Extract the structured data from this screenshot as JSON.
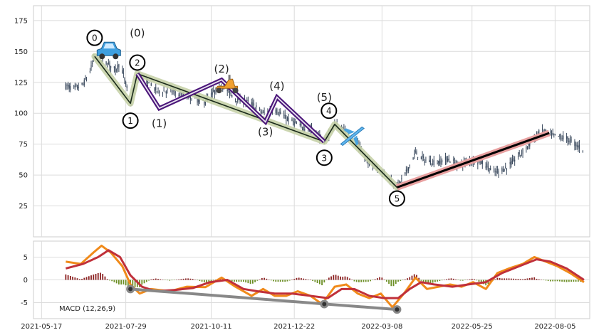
{
  "chart_data": {
    "type": "candlestick",
    "price_panel": {
      "ylim": [
        0,
        187
      ],
      "y_ticks": [
        25,
        50,
        75,
        100,
        125,
        150,
        175
      ],
      "x_range": [
        "2021-05-10",
        "2022-09-04"
      ],
      "grid": true,
      "price_path": [
        [
          "2021-06-07",
          122
        ],
        [
          "2021-06-15",
          120
        ],
        [
          "2021-06-22",
          123
        ],
        [
          "2021-06-28",
          134
        ],
        [
          "2021-07-02",
          146
        ],
        [
          "2021-07-08",
          142
        ],
        [
          "2021-07-14",
          140
        ],
        [
          "2021-07-20",
          135
        ],
        [
          "2021-07-24",
          141
        ],
        [
          "2021-07-30",
          120
        ],
        [
          "2021-08-02",
          108
        ],
        [
          "2021-08-04",
          115
        ],
        [
          "2021-08-08",
          132
        ],
        [
          "2021-08-16",
          125
        ],
        [
          "2021-08-25",
          118
        ],
        [
          "2021-09-05",
          118
        ],
        [
          "2021-09-20",
          114
        ],
        [
          "2021-10-05",
          109
        ],
        [
          "2021-10-20",
          123
        ],
        [
          "2021-11-01",
          112
        ],
        [
          "2021-11-15",
          108
        ],
        [
          "2021-11-25",
          100
        ],
        [
          "2021-12-05",
          103
        ],
        [
          "2021-12-15",
          96
        ],
        [
          "2021-12-28",
          89
        ],
        [
          "2022-01-08",
          86
        ],
        [
          "2022-01-17",
          77
        ],
        [
          "2022-01-26",
          91
        ],
        [
          "2022-02-03",
          86
        ],
        [
          "2022-02-12",
          80
        ],
        [
          "2022-02-22",
          62
        ],
        [
          "2022-03-05",
          56
        ],
        [
          "2022-03-13",
          49
        ],
        [
          "2022-03-21",
          40
        ],
        [
          "2022-03-29",
          52
        ],
        [
          "2022-04-06",
          68
        ],
        [
          "2022-04-14",
          62
        ],
        [
          "2022-04-24",
          60
        ],
        [
          "2022-05-04",
          63
        ],
        [
          "2022-05-14",
          58
        ],
        [
          "2022-05-24",
          62
        ],
        [
          "2022-06-04",
          60
        ],
        [
          "2022-06-13",
          52
        ],
        [
          "2022-06-24",
          56
        ],
        [
          "2022-07-04",
          65
        ],
        [
          "2022-07-14",
          75
        ],
        [
          "2022-07-24",
          86
        ],
        [
          "2022-08-03",
          82
        ],
        [
          "2022-08-14",
          80
        ],
        [
          "2022-08-24",
          74
        ],
        [
          "2022-08-29",
          71
        ]
      ],
      "main_wave_path": [
        [
          "2021-07-02",
          146
        ],
        [
          "2021-08-02",
          108
        ],
        [
          "2021-08-08",
          132
        ],
        [
          "2022-01-17",
          77
        ],
        [
          "2022-01-26",
          91
        ],
        [
          "2022-03-21",
          40
        ]
      ],
      "sub_wave_path": [
        [
          "2021-08-08",
          132
        ],
        [
          "2021-08-27",
          104
        ],
        [
          "2021-10-20",
          127
        ],
        [
          "2021-11-27",
          93
        ],
        [
          "2021-12-07",
          113
        ],
        [
          "2022-01-17",
          77
        ]
      ],
      "trend_line": [
        [
          "2022-03-21",
          40
        ],
        [
          "2022-07-31",
          84
        ]
      ],
      "wave_circles": [
        {
          "label": "0",
          "date": "2021-07-02",
          "y": 161
        },
        {
          "label": "1",
          "date": "2021-08-02",
          "y": 94
        },
        {
          "label": "2",
          "date": "2021-08-08",
          "y": 141
        },
        {
          "label": "3",
          "date": "2022-01-17",
          "y": 64
        },
        {
          "label": "4",
          "date": "2022-01-21",
          "y": 102
        },
        {
          "label": "5",
          "date": "2022-03-21",
          "y": 31
        }
      ],
      "subwave_labels": [
        {
          "label": "(0)",
          "date": "2021-08-08",
          "y": 162
        },
        {
          "label": "(1)",
          "date": "2021-08-27",
          "y": 89
        },
        {
          "label": "(2)",
          "date": "2021-10-20",
          "y": 133
        },
        {
          "label": "(3)",
          "date": "2021-11-27",
          "y": 82
        },
        {
          "label": "(4)",
          "date": "2021-12-07",
          "y": 119
        },
        {
          "label": "(5)",
          "date": "2022-01-17",
          "y": 110
        }
      ],
      "icons": [
        {
          "name": "car-icon",
          "date": "2021-07-14",
          "y": 150
        },
        {
          "name": "scooter-icon",
          "date": "2021-10-24",
          "y": 123
        },
        {
          "name": "airplane-icon",
          "date": "2022-02-10",
          "y": 82
        }
      ]
    },
    "macd_panel": {
      "label": "MACD (12,26,9)",
      "ylim": [
        -8.5,
        8.5
      ],
      "y_ticks": [
        -5,
        0,
        5
      ],
      "grid": true,
      "macd_path": [
        [
          "2021-06-07",
          4
        ],
        [
          "2021-06-20",
          3.5
        ],
        [
          "2021-07-01",
          6
        ],
        [
          "2021-07-08",
          7.5
        ],
        [
          "2021-07-16",
          6
        ],
        [
          "2021-07-26",
          3
        ],
        [
          "2021-08-02",
          -1
        ],
        [
          "2021-08-10",
          -3
        ],
        [
          "2021-08-20",
          -2
        ],
        [
          "2021-09-05",
          -2.5
        ],
        [
          "2021-09-20",
          -1.5
        ],
        [
          "2021-10-06",
          -1.6
        ],
        [
          "2021-10-20",
          0.5
        ],
        [
          "2021-11-01",
          -1.5
        ],
        [
          "2021-11-15",
          -3.5
        ],
        [
          "2021-11-25",
          -2
        ],
        [
          "2021-12-05",
          -3.5
        ],
        [
          "2021-12-15",
          -3.5
        ],
        [
          "2021-12-25",
          -2.5
        ],
        [
          "2022-01-05",
          -3.5
        ],
        [
          "2022-01-15",
          -5.3
        ],
        [
          "2022-01-26",
          -1.5
        ],
        [
          "2022-02-05",
          -1
        ],
        [
          "2022-02-15",
          -3
        ],
        [
          "2022-02-25",
          -4
        ],
        [
          "2022-03-07",
          -3
        ],
        [
          "2022-03-17",
          -6
        ],
        [
          "2022-03-27",
          -3
        ],
        [
          "2022-04-06",
          0.5
        ],
        [
          "2022-04-16",
          -2
        ],
        [
          "2022-04-26",
          -1.5
        ],
        [
          "2022-05-06",
          -1
        ],
        [
          "2022-05-16",
          -1.5
        ],
        [
          "2022-05-26",
          -0.5
        ],
        [
          "2022-06-06",
          -2
        ],
        [
          "2022-06-16",
          1.5
        ],
        [
          "2022-06-26",
          2.5
        ],
        [
          "2022-07-08",
          3.5
        ],
        [
          "2022-07-18",
          5
        ],
        [
          "2022-07-28",
          4
        ],
        [
          "2022-08-07",
          3
        ],
        [
          "2022-08-18",
          1.5
        ],
        [
          "2022-08-30",
          -0.5
        ]
      ],
      "signal_path": [
        [
          "2021-06-07",
          2.5
        ],
        [
          "2021-06-22",
          3.5
        ],
        [
          "2021-07-05",
          5
        ],
        [
          "2021-07-14",
          6.5
        ],
        [
          "2021-07-24",
          5
        ],
        [
          "2021-08-02",
          1
        ],
        [
          "2021-08-12",
          -1.5
        ],
        [
          "2021-08-24",
          -2.5
        ],
        [
          "2021-09-10",
          -2.2
        ],
        [
          "2021-09-25",
          -1.8
        ],
        [
          "2021-10-10",
          -0.5
        ],
        [
          "2021-10-25",
          0
        ],
        [
          "2021-11-08",
          -2
        ],
        [
          "2021-11-20",
          -2.5
        ],
        [
          "2021-12-05",
          -3
        ],
        [
          "2021-12-20",
          -3
        ],
        [
          "2022-01-05",
          -3.5
        ],
        [
          "2022-01-20",
          -4
        ],
        [
          "2022-02-01",
          -2
        ],
        [
          "2022-02-12",
          -2
        ],
        [
          "2022-02-25",
          -3.5
        ],
        [
          "2022-03-10",
          -4
        ],
        [
          "2022-03-22",
          -4
        ],
        [
          "2022-04-01",
          -2
        ],
        [
          "2022-04-11",
          -0.5
        ],
        [
          "2022-04-22",
          -1
        ],
        [
          "2022-05-08",
          -1.5
        ],
        [
          "2022-05-22",
          -1
        ],
        [
          "2022-06-06",
          -0.5
        ],
        [
          "2022-06-20",
          1.5
        ],
        [
          "2022-07-05",
          3
        ],
        [
          "2022-07-20",
          4.5
        ],
        [
          "2022-08-01",
          4
        ],
        [
          "2022-08-15",
          2.5
        ],
        [
          "2022-08-30",
          0
        ]
      ],
      "divergence_line": [
        [
          "2021-08-02",
          -2
        ],
        [
          "2022-03-21",
          -6.5
        ]
      ],
      "divergence_points": [
        [
          "2021-08-02",
          -2
        ],
        [
          "2022-01-17",
          -5.3
        ],
        [
          "2022-03-21",
          -6.5
        ]
      ]
    },
    "x_ticks": [
      "2021-05-17",
      "2021-07-29",
      "2021-10-11",
      "2021-12-22",
      "2022-03-08",
      "2022-05-25",
      "2022-08-05"
    ],
    "colors": {
      "candle": "#3b4a5e",
      "main_wave_glow": "#c7d1a8",
      "main_wave_line": "#1a2a1a",
      "sub_wave": "#4b167a",
      "trend_glow": "#e8a0a0",
      "trend_line": "#000000",
      "macd": "#f08a1a",
      "signal": "#c0303a",
      "hist_pos": "#8b2020",
      "hist_neg": "#6b8e23",
      "divergence": "#888888",
      "grid": "#dcdcdc",
      "frame": "#cccccc"
    }
  }
}
